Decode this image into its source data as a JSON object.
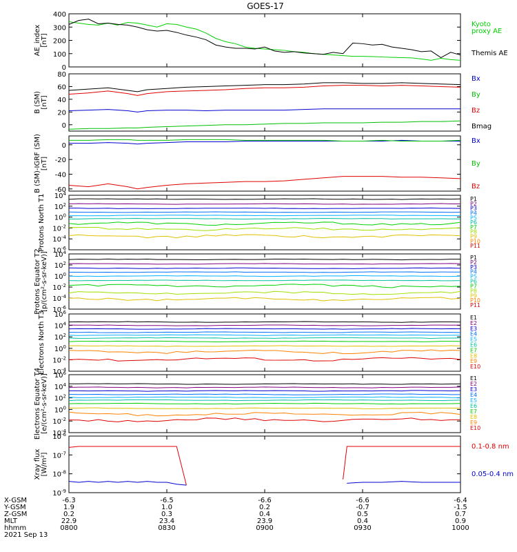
{
  "page": {
    "title": "GOES-17",
    "date": "2021 Sep 13"
  },
  "axis_x": {
    "tick_labels": [
      "0800",
      "0830",
      "0900",
      "0930",
      "1000"
    ]
  },
  "footer_rows": [
    {
      "label": "X-GSM",
      "values": [
        "-6.3",
        "-6.5",
        "-6.6",
        "-6.6",
        "-6.4"
      ]
    },
    {
      "label": "Y-GSM",
      "values": [
        "1.9",
        "1.0",
        "0.2",
        "-0.7",
        "-1.5"
      ]
    },
    {
      "label": "Z-GSM",
      "values": [
        "0.2",
        "0.3",
        "0.4",
        "0.5",
        "0.7"
      ]
    },
    {
      "label": "MLT",
      "values": [
        "22.9",
        "23.4",
        "23.9",
        "0.4",
        "0.9"
      ]
    },
    {
      "label": "hhmm",
      "values": [
        "0800",
        "0830",
        "0900",
        "0930",
        "1000"
      ]
    }
  ],
  "chart_data": [
    {
      "type": "line",
      "ylabel": "AE_index [nT]",
      "ylim": [
        0,
        400
      ],
      "yticks": [
        "400",
        "300",
        "200",
        "100",
        "0"
      ],
      "x_hours": [
        8.0,
        8.05,
        8.1,
        8.15,
        8.2,
        8.25,
        8.3,
        8.35,
        8.4,
        8.45,
        8.5,
        8.55,
        8.6,
        8.65,
        8.7,
        8.75,
        8.8,
        8.85,
        8.9,
        8.95,
        9.0,
        9.05,
        9.1,
        9.15,
        9.2,
        9.25,
        9.3,
        9.35,
        9.4,
        9.45,
        9.5,
        9.55,
        9.6,
        9.65,
        9.7,
        9.75,
        9.8,
        9.85,
        9.9,
        9.95,
        10.0
      ],
      "series": [
        {
          "name": "Kyoto proxy AE",
          "color": "#00d000",
          "values": [
            340,
            330,
            320,
            315,
            330,
            315,
            335,
            330,
            315,
            300,
            325,
            320,
            300,
            285,
            255,
            215,
            190,
            175,
            150,
            140,
            135,
            130,
            125,
            115,
            110,
            100,
            95,
            90,
            85,
            80,
            80,
            78,
            75,
            72,
            70,
            68,
            60,
            50,
            65,
            55,
            50
          ]
        },
        {
          "name": "Themis AE",
          "color": "#000000",
          "values": [
            320,
            350,
            360,
            325,
            330,
            320,
            315,
            300,
            280,
            270,
            275,
            260,
            240,
            225,
            205,
            165,
            150,
            140,
            140,
            135,
            150,
            120,
            110,
            115,
            105,
            100,
            95,
            110,
            100,
            180,
            175,
            165,
            170,
            150,
            140,
            130,
            115,
            120,
            70,
            110,
            90
          ]
        }
      ],
      "legend": [
        "Kyoto",
        "proxy AE",
        "Themis AE"
      ]
    },
    {
      "type": "line",
      "ylabel": "B (SM) [nT]",
      "ylim": [
        -10,
        80
      ],
      "yticks": [
        "80",
        "60",
        "40",
        "20",
        "0",
        "-20"
      ],
      "x_hours": [
        8.0,
        8.1,
        8.2,
        8.3,
        8.35,
        8.4,
        8.5,
        8.6,
        8.7,
        8.8,
        8.9,
        9.0,
        9.1,
        9.2,
        9.3,
        9.4,
        9.5,
        9.6,
        9.7,
        9.8,
        9.9,
        10.0
      ],
      "series": [
        {
          "name": "Bmag",
          "color": "#000000",
          "values": [
            54,
            56,
            58,
            54,
            52,
            55,
            57,
            59,
            60,
            61,
            62,
            63,
            63,
            64,
            66,
            66,
            65,
            65,
            66,
            65,
            64,
            63
          ]
        },
        {
          "name": "Bz",
          "color": "#e00000",
          "values": [
            48,
            50,
            53,
            49,
            46,
            49,
            52,
            53,
            54,
            55,
            57,
            58,
            58,
            59,
            61,
            62,
            62,
            61,
            62,
            61,
            60,
            59
          ]
        },
        {
          "name": "Bx",
          "color": "#0000d0",
          "values": [
            22,
            23,
            24,
            22,
            20,
            22,
            23,
            23,
            22,
            23,
            23,
            23,
            23,
            24,
            25,
            25,
            25,
            25,
            25,
            25,
            25,
            25
          ]
        },
        {
          "name": "By",
          "color": "#00c000",
          "values": [
            -7,
            -6,
            -6,
            -5,
            -5,
            -4,
            -3,
            -2,
            -1,
            0,
            0,
            1,
            2,
            2,
            3,
            3,
            3,
            4,
            4,
            5,
            5,
            6
          ]
        }
      ],
      "legend": [
        "Bx",
        "By",
        "Bz",
        "Bmag"
      ]
    },
    {
      "type": "line",
      "ylabel": "B (SM)-IGRF (SM) [nT]",
      "ylim": [
        -63,
        12
      ],
      "yticks": [
        "0",
        "-20",
        "-40",
        "-60"
      ],
      "x_hours": [
        8.0,
        8.1,
        8.2,
        8.3,
        8.35,
        8.4,
        8.5,
        8.6,
        8.7,
        8.8,
        8.9,
        9.0,
        9.1,
        9.2,
        9.3,
        9.4,
        9.5,
        9.6,
        9.7,
        9.8,
        9.9,
        10.0
      ],
      "series": [
        {
          "name": "Bx",
          "color": "#0000d0",
          "values": [
            2,
            2,
            3,
            2,
            1,
            2,
            3,
            4,
            4,
            4,
            5,
            5,
            5,
            5,
            5,
            5,
            5,
            5,
            6,
            5,
            5,
            5
          ]
        },
        {
          "name": "By",
          "color": "#00c000",
          "values": [
            6,
            6,
            7,
            7,
            6,
            6,
            6,
            7,
            7,
            7,
            6,
            6,
            6,
            6,
            6,
            5,
            5,
            6,
            5,
            5,
            5,
            6
          ]
        },
        {
          "name": "Bz",
          "color": "#e00000",
          "values": [
            -55,
            -57,
            -53,
            -57,
            -60,
            -58,
            -55,
            -53,
            -52,
            -51,
            -50,
            -50,
            -49,
            -47,
            -45,
            -43,
            -43,
            -43,
            -44,
            -44,
            -45,
            -46
          ]
        }
      ],
      "legend": [
        "Bx",
        "By",
        "Bz"
      ]
    },
    {
      "type": "line",
      "scale": "log",
      "ylabel": "Protons North T1",
      "ylim_exp": [
        -6,
        4
      ],
      "yticks": [
        "10^4",
        "10^2",
        "10^0",
        "10^-2",
        "10^-4",
        "10^-6"
      ],
      "series": [
        {
          "name": "P1",
          "color": "#000000",
          "log_level": 3.3
        },
        {
          "name": "P2",
          "color": "#800080",
          "log_level": 2.4
        },
        {
          "name": "P3",
          "color": "#0000d0",
          "log_level": 1.6
        },
        {
          "name": "P4",
          "color": "#0070ff",
          "log_level": 0.9
        },
        {
          "name": "P5",
          "color": "#00b0ff",
          "log_level": 0.3
        },
        {
          "name": "P6",
          "color": "#00c0a0",
          "log_level": -0.3
        },
        {
          "name": "P7",
          "color": "#00d000",
          "log_level": -1.2
        },
        {
          "name": "P8",
          "color": "#a0e000",
          "log_level": -2.2
        },
        {
          "name": "P9",
          "color": "#e0c000",
          "log_level": -3.5
        },
        {
          "name": "P10",
          "color": "#ff8000",
          "log_level": -8
        },
        {
          "name": "P11",
          "color": "#e00000",
          "log_level": -8
        }
      ],
      "legend": [
        "P1",
        "P2",
        "P3",
        "P4",
        "P5",
        "P6",
        "P7",
        "P8",
        "P9",
        "P10",
        "P11"
      ]
    },
    {
      "type": "line",
      "scale": "log",
      "ylabel": "Protons Equator T2 [p/(cm²-s-sr-keV)]",
      "ylim_exp": [
        -6,
        4
      ],
      "yticks": [
        "10^4",
        "10^2",
        "10^0",
        "10^-2",
        "10^-4",
        "10^-6"
      ],
      "series": [
        {
          "name": "P1",
          "color": "#000000",
          "log_level": 3.0
        },
        {
          "name": "P2",
          "color": "#800080",
          "log_level": 2.2
        },
        {
          "name": "P3",
          "color": "#0000d0",
          "log_level": 1.4
        },
        {
          "name": "P4",
          "color": "#0070ff",
          "log_level": 0.7
        },
        {
          "name": "P5",
          "color": "#00b0ff",
          "log_level": 0.0
        },
        {
          "name": "P6",
          "color": "#00c0a0",
          "log_level": -0.8
        },
        {
          "name": "P7",
          "color": "#00d000",
          "log_level": -1.8
        },
        {
          "name": "P8",
          "color": "#a0e000",
          "log_level": -3.1
        },
        {
          "name": "P9",
          "color": "#e0c000",
          "log_level": -4.2
        },
        {
          "name": "P10",
          "color": "#ff8000",
          "log_level": -8
        },
        {
          "name": "P11",
          "color": "#e00000",
          "log_level": -8
        }
      ],
      "legend": [
        "P1",
        "P2",
        "P3",
        "P4",
        "P5",
        "P6",
        "P7",
        "P8",
        "P9",
        "P10",
        "P11"
      ]
    },
    {
      "type": "line",
      "scale": "log",
      "ylabel": "Electrons North T3",
      "ylim_exp": [
        -4,
        6
      ],
      "yticks": [
        "10^6",
        "10^4",
        "10^2",
        "10^0",
        "10^-2",
        "10^-4"
      ],
      "series": [
        {
          "name": "E1",
          "color": "#000000",
          "log_level": 4.6
        },
        {
          "name": "E2",
          "color": "#800080",
          "log_level": 4.0
        },
        {
          "name": "E3",
          "color": "#0000d0",
          "log_level": 3.4
        },
        {
          "name": "E4",
          "color": "#0070ff",
          "log_level": 2.8
        },
        {
          "name": "E5",
          "color": "#00b0ff",
          "log_level": 2.3
        },
        {
          "name": "E6",
          "color": "#00c0a0",
          "log_level": 1.8
        },
        {
          "name": "E7",
          "color": "#00d000",
          "log_level": 1.2
        },
        {
          "name": "E8",
          "color": "#e0c000",
          "log_level": 0.4
        },
        {
          "name": "E9",
          "color": "#ff8000",
          "log_level": -0.6
        },
        {
          "name": "E10",
          "color": "#e00000",
          "log_level": -1.9
        }
      ],
      "legend": [
        "E1",
        "E2",
        "E3",
        "E4",
        "E5",
        "E6",
        "E7",
        "E8",
        "E9",
        "E10"
      ]
    },
    {
      "type": "line",
      "scale": "log",
      "ylabel": "Electrons Equator T4 [e/(cm²-s-sr-keV)]",
      "ylim_exp": [
        -4,
        6
      ],
      "yticks": [
        "10^6",
        "10^4",
        "10^2",
        "10^0",
        "10^-2",
        "10^-4"
      ],
      "series": [
        {
          "name": "E1",
          "color": "#000000",
          "log_level": 4.4
        },
        {
          "name": "E2",
          "color": "#800080",
          "log_level": 3.8
        },
        {
          "name": "E3",
          "color": "#0000d0",
          "log_level": 3.2
        },
        {
          "name": "E4",
          "color": "#0070ff",
          "log_level": 2.6
        },
        {
          "name": "E5",
          "color": "#00b0ff",
          "log_level": 2.1
        },
        {
          "name": "E6",
          "color": "#00c0a0",
          "log_level": 1.6
        },
        {
          "name": "E7",
          "color": "#00d000",
          "log_level": 1.0
        },
        {
          "name": "E8",
          "color": "#e0c000",
          "log_level": 0.2
        },
        {
          "name": "E9",
          "color": "#ff8000",
          "log_level": -0.8
        },
        {
          "name": "E10",
          "color": "#e00000",
          "log_level": -1.8
        }
      ],
      "legend": [
        "E1",
        "E2",
        "E3",
        "E4",
        "E5",
        "E6",
        "E7",
        "E8",
        "E9",
        "E10"
      ]
    },
    {
      "type": "line",
      "scale": "log",
      "ylabel": "Xray flux [W/m²]",
      "ylim_exp": [
        -9,
        -6
      ],
      "yticks": [
        "10^-6",
        "10^-7",
        "10^-8",
        "10^-9"
      ],
      "series": [
        {
          "name": "0.1-0.8 nm",
          "color": "#e00000",
          "segments": [
            {
              "x": [
                8.0,
                8.05,
                8.1,
                8.2,
                8.3,
                8.4,
                8.5,
                8.55,
                8.6
              ],
              "y": [
                -6.6,
                -6.55,
                -6.55,
                -6.55,
                -6.55,
                -6.55,
                -6.55,
                -6.55,
                -8.6
              ]
            },
            {
              "x": [
                9.4,
                9.42,
                9.5,
                9.6,
                9.7,
                9.8,
                9.9,
                10.0
              ],
              "y": [
                -8.3,
                -6.55,
                -6.55,
                -6.55,
                -6.55,
                -6.55,
                -6.55,
                -6.55
              ]
            }
          ]
        },
        {
          "name": "0.05-0.4 nm",
          "color": "#0000d0",
          "segments": [
            {
              "x": [
                8.0,
                8.05,
                8.1,
                8.15,
                8.2,
                8.25,
                8.3,
                8.35,
                8.4,
                8.45,
                8.5,
                8.55,
                8.6
              ],
              "y": [
                -8.4,
                -8.45,
                -8.4,
                -8.45,
                -8.4,
                -8.45,
                -8.4,
                -8.45,
                -8.4,
                -8.45,
                -8.45,
                -8.55,
                -8.6
              ]
            },
            {
              "x": [
                9.42,
                9.5,
                9.6,
                9.7,
                9.8,
                9.9,
                10.0
              ],
              "y": [
                -8.5,
                -8.45,
                -8.45,
                -8.4,
                -8.45,
                -8.45,
                -8.45
              ]
            }
          ]
        }
      ],
      "legend": [
        "0.1-0.8 nm",
        "0.05-0.4 nm"
      ]
    }
  ]
}
